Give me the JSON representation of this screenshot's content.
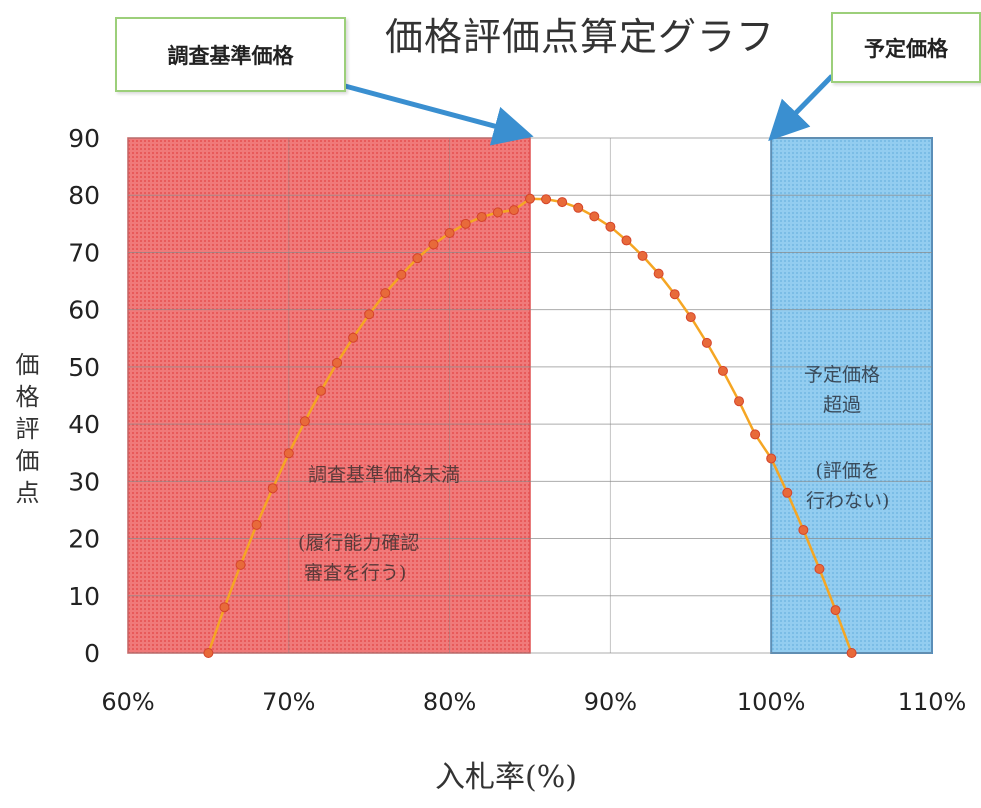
{
  "title": "価格評価点算定グラフ",
  "callouts": {
    "left": "調査基準価格",
    "right": "予定価格"
  },
  "annotations": {
    "left_main": "調査基準価格未満",
    "left_sub": "(履行能力確認\n 審査を行う)",
    "right_main": "予定価格\n超過",
    "right_sub": "(評価を\n行わない)"
  },
  "colors": {
    "left_region": "#f26b6b",
    "right_region": "#86c6ee",
    "right_border": "#4a90c8",
    "curve": "#f5a623",
    "marker_fill": "#e86a3a",
    "marker_stroke": "#d4442a",
    "arrow": "#3a8fd0",
    "grid": "#8a8a8a"
  },
  "chart_data": {
    "type": "line",
    "title": "価格評価点算定グラフ",
    "xlabel": "入札率(%)",
    "ylabel": "価格評価点",
    "xlim": [
      60,
      110
    ],
    "ylim": [
      0,
      90
    ],
    "x_ticks": [
      "60%",
      "70%",
      "80%",
      "90%",
      "100%",
      "110%"
    ],
    "x_tick_values": [
      60,
      70,
      80,
      90,
      100,
      110
    ],
    "y_ticks": [
      "0",
      "10",
      "20",
      "30",
      "40",
      "50",
      "60",
      "70",
      "80",
      "90"
    ],
    "y_tick_values": [
      0,
      10,
      20,
      30,
      40,
      50,
      60,
      70,
      80,
      90
    ],
    "grid": true,
    "regions": [
      {
        "from": 60,
        "to": 85,
        "label": "調査基準価格未満"
      },
      {
        "from": 100,
        "to": 110,
        "label": "予定価格超過"
      }
    ],
    "markers_at": {
      "調査基準価格": 85,
      "予定価格": 100
    },
    "series": [
      {
        "x": [
          65,
          66,
          67,
          68,
          69,
          70,
          71,
          72,
          73,
          74,
          75,
          76,
          77,
          78,
          79,
          80,
          81,
          82,
          83,
          84,
          85,
          86,
          87,
          88,
          89,
          90,
          91,
          92,
          93,
          94,
          95,
          96,
          97,
          98,
          99,
          100,
          101,
          102,
          103,
          104,
          105
        ],
        "y": [
          0,
          8.0,
          15.4,
          22.4,
          28.8,
          34.9,
          40.5,
          45.8,
          50.7,
          55.1,
          59.2,
          62.9,
          66.1,
          69.0,
          71.4,
          73.4,
          75.0,
          76.2,
          77.0,
          77.4,
          79.4,
          79.3,
          78.8,
          77.8,
          76.3,
          74.5,
          72.1,
          69.4,
          66.3,
          62.7,
          58.7,
          54.2,
          49.3,
          44.0,
          38.2,
          34.0,
          28.0,
          21.5,
          14.7,
          7.5,
          0
        ]
      }
    ]
  }
}
